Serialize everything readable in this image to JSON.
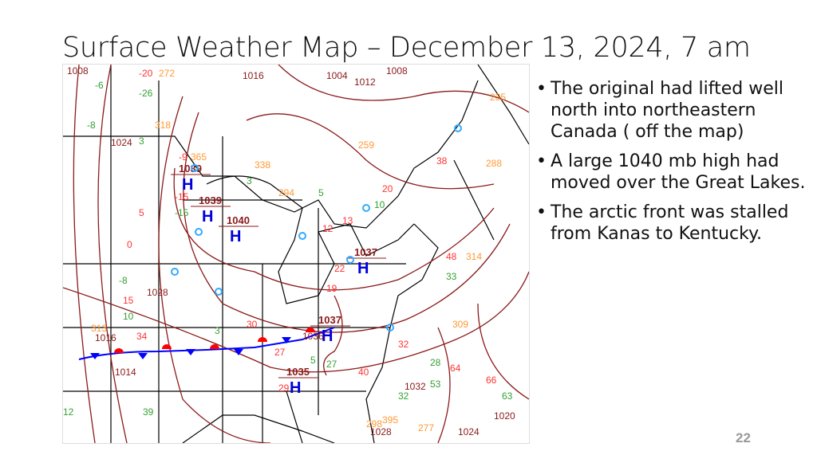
{
  "slide": {
    "title": "Surface Weather Map – December 13, 2024, 7 am",
    "bullets": [
      "The original had lifted well north into northeastern Canada ( off the map)",
      "A large 1040 mb high had moved over the Great Lakes.",
      "The arctic front was stalled from Kanas to Kentucky."
    ],
    "page_number": "22"
  },
  "map": {
    "colors": {
      "isobar": "#8b1a1a",
      "high": "#0000dd",
      "cold_front": "#0000ff",
      "warm_front": "#ff0000",
      "temperature": "#ff3333",
      "dewpoint": "#33a033",
      "pressure_obs": "#ff9933",
      "station": "#33aaff",
      "border": "#000000"
    },
    "highs": [
      {
        "symbol": "H",
        "pressure": "1039"
      },
      {
        "symbol": "H",
        "pressure": "1039"
      },
      {
        "symbol": "H",
        "pressure": "1040"
      },
      {
        "symbol": "H",
        "pressure": "1037"
      },
      {
        "symbol": "H",
        "pressure": "1037"
      },
      {
        "symbol": "H",
        "pressure": "1035"
      }
    ],
    "isobar_labels": [
      "1008",
      "1016",
      "1004",
      "1012",
      "1008",
      "1024",
      "1028",
      "1016",
      "1014",
      "1036",
      "1032",
      "1024",
      "1020",
      "1028"
    ],
    "temperatures": [
      "-20",
      "-9",
      "-15",
      "5",
      "0",
      "13",
      "12",
      "19",
      "22",
      "30",
      "27",
      "32",
      "29",
      "40",
      "20",
      "48",
      "64",
      "66",
      "15",
      "34",
      "38"
    ],
    "dewpoints": [
      "-6",
      "-26",
      "-8",
      "3",
      "-15",
      "3",
      "5",
      "10",
      "-8",
      "3",
      "5",
      "33",
      "10",
      "28",
      "27",
      "53",
      "39",
      "63",
      "32",
      "12"
    ],
    "pressures": [
      "272",
      "318",
      "365",
      "338",
      "294",
      "259",
      "313",
      "314",
      "309",
      "235",
      "288",
      "277",
      "395",
      "298"
    ]
  }
}
